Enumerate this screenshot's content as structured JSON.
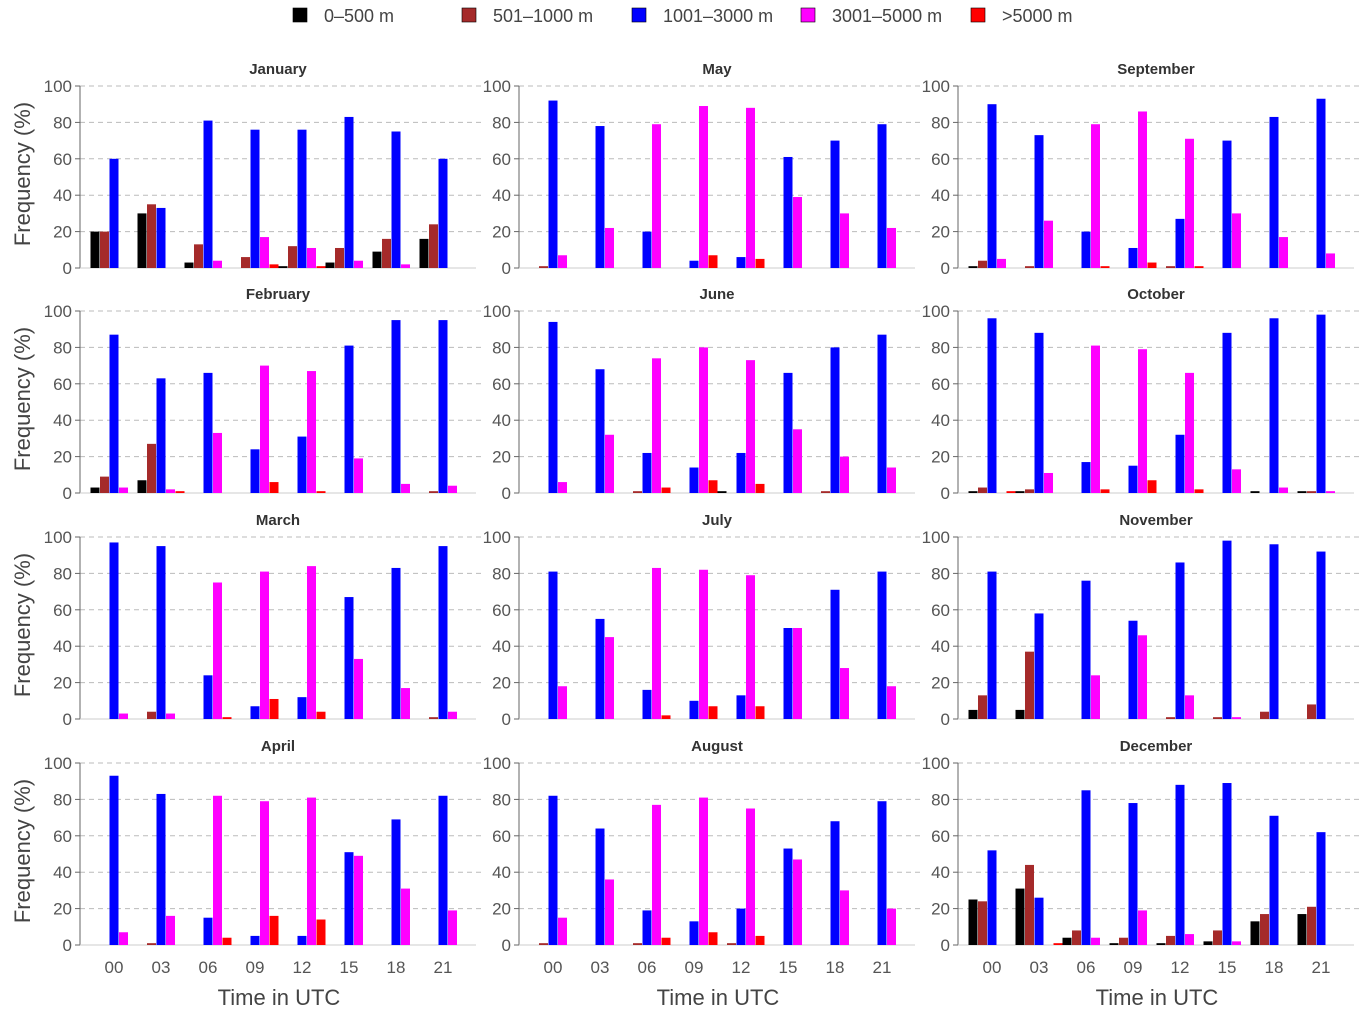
{
  "chart_data": {
    "type": "bar",
    "ylabel": "Frequency (%)",
    "xlabel": "Time in UTC",
    "ylim": [
      0,
      100
    ],
    "yticks": [
      0,
      20,
      40,
      60,
      80,
      100
    ],
    "categories": [
      "00",
      "03",
      "06",
      "09",
      "12",
      "15",
      "18",
      "21"
    ],
    "legend": {
      "placement": "top",
      "items": [
        {
          "label": "0–500 m",
          "color": "#000000"
        },
        {
          "label": "501–1000 m",
          "color": "#a52a2a"
        },
        {
          "label": "1001–3000 m",
          "color": "#0000ff"
        },
        {
          "label": "3001–5000 m",
          "color": "#ff00ff"
        },
        {
          "label": ">5000 m",
          "color": "#ff0000"
        }
      ]
    },
    "panels": [
      {
        "title": "January",
        "series": [
          [
            20,
            30,
            3,
            0,
            1,
            3,
            9,
            16
          ],
          [
            20,
            35,
            13,
            6,
            12,
            11,
            16,
            24
          ],
          [
            60,
            33,
            81,
            76,
            76,
            83,
            75,
            60
          ],
          [
            0,
            0,
            4,
            17,
            11,
            4,
            2,
            0
          ],
          [
            0,
            0,
            0,
            2,
            1,
            0,
            0,
            0
          ]
        ]
      },
      {
        "title": "May",
        "series": [
          [
            0,
            0,
            0,
            0,
            0,
            0,
            0,
            0
          ],
          [
            1,
            0,
            0,
            0,
            0,
            0,
            0,
            0
          ],
          [
            92,
            78,
            20,
            4,
            6,
            61,
            70,
            79
          ],
          [
            7,
            22,
            79,
            89,
            88,
            39,
            30,
            22
          ],
          [
            0,
            0,
            0,
            7,
            5,
            0,
            0,
            0
          ]
        ]
      },
      {
        "title": "September",
        "series": [
          [
            1,
            0,
            0,
            0,
            0,
            0,
            0,
            0
          ],
          [
            4,
            1,
            0,
            0,
            1,
            0,
            0,
            0
          ],
          [
            90,
            73,
            20,
            11,
            27,
            70,
            83,
            93
          ],
          [
            5,
            26,
            79,
            86,
            71,
            30,
            17,
            8
          ],
          [
            0,
            0,
            1,
            3,
            1,
            0,
            0,
            0
          ]
        ]
      },
      {
        "title": "February",
        "series": [
          [
            3,
            7,
            0,
            0,
            0,
            0,
            0,
            0
          ],
          [
            9,
            27,
            0,
            0,
            0,
            0,
            0,
            1
          ],
          [
            87,
            63,
            66,
            24,
            31,
            81,
            95,
            95
          ],
          [
            3,
            2,
            33,
            70,
            67,
            19,
            5,
            4
          ],
          [
            0,
            1,
            0,
            6,
            1,
            0,
            0,
            0
          ]
        ]
      },
      {
        "title": "June",
        "series": [
          [
            0,
            0,
            0,
            0,
            1,
            0,
            0,
            0
          ],
          [
            0,
            0,
            1,
            0,
            0,
            0,
            1,
            0
          ],
          [
            94,
            68,
            22,
            14,
            22,
            66,
            80,
            87
          ],
          [
            6,
            32,
            74,
            80,
            73,
            35,
            20,
            14
          ],
          [
            0,
            0,
            3,
            7,
            5,
            0,
            0,
            0
          ]
        ]
      },
      {
        "title": "October",
        "series": [
          [
            1,
            1,
            0,
            0,
            0,
            0,
            1,
            1
          ],
          [
            3,
            2,
            0,
            0,
            0,
            0,
            0,
            1
          ],
          [
            96,
            88,
            17,
            15,
            32,
            88,
            96,
            98
          ],
          [
            0,
            11,
            81,
            79,
            66,
            13,
            3,
            1
          ],
          [
            1,
            0,
            2,
            7,
            2,
            0,
            0,
            0
          ]
        ]
      },
      {
        "title": "March",
        "series": [
          [
            0,
            0,
            0,
            0,
            0,
            0,
            0,
            0
          ],
          [
            0,
            4,
            0,
            0,
            0,
            0,
            0,
            1
          ],
          [
            97,
            95,
            24,
            7,
            12,
            67,
            83,
            95
          ],
          [
            3,
            3,
            75,
            81,
            84,
            33,
            17,
            4
          ],
          [
            0,
            0,
            1,
            11,
            4,
            0,
            0,
            0
          ]
        ]
      },
      {
        "title": "July",
        "series": [
          [
            0,
            0,
            0,
            0,
            0,
            0,
            0,
            0
          ],
          [
            0,
            0,
            0,
            0,
            0,
            0,
            0,
            0
          ],
          [
            81,
            55,
            16,
            10,
            13,
            50,
            71,
            81
          ],
          [
            18,
            45,
            83,
            82,
            79,
            50,
            28,
            18
          ],
          [
            0,
            0,
            2,
            7,
            7,
            0,
            0,
            0
          ]
        ]
      },
      {
        "title": "November",
        "series": [
          [
            5,
            5,
            0,
            0,
            0,
            0,
            0,
            0
          ],
          [
            13,
            37,
            0,
            0,
            1,
            1,
            4,
            8
          ],
          [
            81,
            58,
            76,
            54,
            86,
            98,
            96,
            92
          ],
          [
            0,
            0,
            24,
            46,
            13,
            1,
            0,
            0
          ],
          [
            0,
            0,
            0,
            0,
            0,
            0,
            0,
            0
          ]
        ]
      },
      {
        "title": "April",
        "series": [
          [
            0,
            0,
            0,
            0,
            0,
            0,
            0,
            0
          ],
          [
            0,
            1,
            0,
            0,
            0,
            0,
            0,
            0
          ],
          [
            93,
            83,
            15,
            5,
            5,
            51,
            69,
            82
          ],
          [
            7,
            16,
            82,
            79,
            81,
            49,
            31,
            19
          ],
          [
            0,
            0,
            4,
            16,
            14,
            0,
            0,
            0
          ]
        ]
      },
      {
        "title": "August",
        "series": [
          [
            0,
            0,
            0,
            0,
            0,
            0,
            0,
            0
          ],
          [
            1,
            0,
            1,
            0,
            1,
            0,
            0,
            0
          ],
          [
            82,
            64,
            19,
            13,
            20,
            53,
            68,
            79
          ],
          [
            15,
            36,
            77,
            81,
            75,
            47,
            30,
            20
          ],
          [
            0,
            0,
            4,
            7,
            5,
            0,
            0,
            0
          ]
        ]
      },
      {
        "title": "December",
        "series": [
          [
            25,
            31,
            4,
            1,
            1,
            2,
            13,
            17
          ],
          [
            24,
            44,
            8,
            4,
            5,
            8,
            17,
            21
          ],
          [
            52,
            26,
            85,
            78,
            88,
            89,
            71,
            62
          ],
          [
            0,
            0,
            4,
            19,
            6,
            2,
            0,
            0
          ],
          [
            0,
            1,
            0,
            0,
            0,
            0,
            0,
            0
          ]
        ]
      }
    ]
  }
}
